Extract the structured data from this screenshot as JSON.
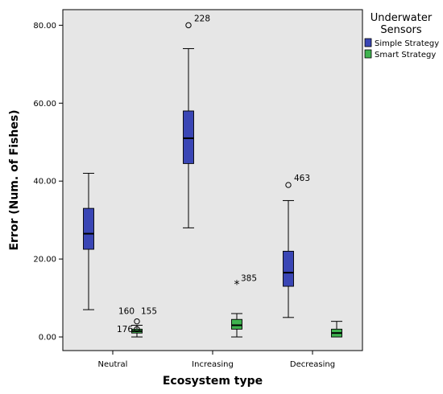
{
  "chart_data": {
    "type": "boxplot",
    "xlabel": "Ecosystem type",
    "ylabel": "Error (Num. of Fishes)",
    "ylim": [
      -3.5,
      84
    ],
    "yticks": [
      "0.00",
      "20.00",
      "40.00",
      "60.00",
      "80.00"
    ],
    "yticks_values": [
      0,
      20,
      40,
      60,
      80
    ],
    "grid": false,
    "categories": [
      "Neutral",
      "Increasing",
      "Decreasing"
    ],
    "legend": {
      "title_line1": "Underwater",
      "title_line2": "Sensors",
      "placement": "top-right"
    },
    "series": [
      {
        "name": "Simple Strategy",
        "color": "#3a46b5",
        "boxes": [
          {
            "category": "Neutral",
            "min": 7,
            "q1": 22.5,
            "median": 26.5,
            "q3": 33,
            "max": 42
          },
          {
            "category": "Increasing",
            "min": 28,
            "q1": 44.5,
            "median": 51,
            "q3": 58,
            "max": 74
          },
          {
            "category": "Decreasing",
            "min": 5,
            "q1": 13,
            "median": 16.5,
            "q3": 22,
            "max": 35
          }
        ]
      },
      {
        "name": "Smart Strategy",
        "color": "#3fb34f",
        "boxes": [
          {
            "category": "Neutral",
            "min": 0,
            "q1": 1,
            "median": 1.5,
            "q3": 2,
            "max": 3
          },
          {
            "category": "Increasing",
            "min": 0,
            "q1": 2,
            "median": 3,
            "q3": 4.5,
            "max": 6
          },
          {
            "category": "Decreasing",
            "min": 0,
            "q1": 0,
            "median": 1,
            "q3": 2,
            "max": 4
          }
        ]
      }
    ],
    "outliers": [
      {
        "series": "Simple Strategy",
        "category": "Increasing",
        "value": 80,
        "label": "228",
        "marker": "circle"
      },
      {
        "series": "Simple Strategy",
        "category": "Decreasing",
        "value": 39,
        "label": "463",
        "marker": "circle"
      },
      {
        "series": "Smart Strategy",
        "category": "Neutral",
        "value": 4,
        "label": "160",
        "marker": "circle"
      },
      {
        "series": "Smart Strategy",
        "category": "Neutral",
        "value": 4,
        "label": "155",
        "marker": "circle"
      },
      {
        "series": "Smart Strategy",
        "category": "Neutral",
        "value": 2,
        "label": "176",
        "marker": "circle"
      },
      {
        "series": "Smart Strategy",
        "category": "Increasing",
        "value": 13.5,
        "label": "385",
        "marker": "star"
      }
    ]
  }
}
